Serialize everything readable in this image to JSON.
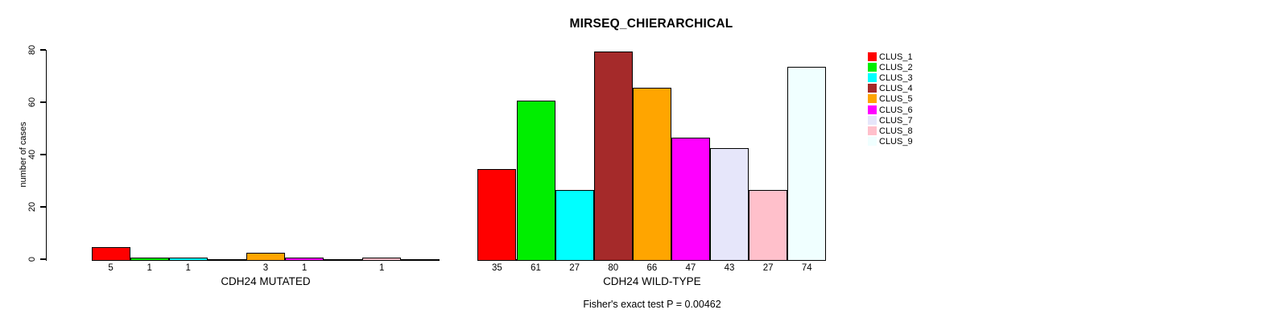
{
  "chart_data": {
    "type": "bar",
    "title": "MIRSEQ_CHIERARCHICAL",
    "ylabel": "number of cases",
    "ylim": [
      0,
      80
    ],
    "yticks": [
      0,
      20,
      40,
      60,
      80
    ],
    "grid": false,
    "legend_position": "right",
    "annotation": "Fisher's exact test P = 0.00462",
    "clusters": [
      {
        "label": "CLUS_1",
        "color": "#FF0000"
      },
      {
        "label": "CLUS_2",
        "color": "#00EE00"
      },
      {
        "label": "CLUS_3",
        "color": "#00FFFF"
      },
      {
        "label": "CLUS_4",
        "color": "#A52A2A"
      },
      {
        "label": "CLUS_5",
        "color": "#FFA500"
      },
      {
        "label": "CLUS_6",
        "color": "#FF00FF"
      },
      {
        "label": "CLUS_7",
        "color": "#E6E6FA"
      },
      {
        "label": "CLUS_8",
        "color": "#FFC0CB"
      },
      {
        "label": "CLUS_9",
        "color": "#F0FFFF"
      }
    ],
    "groups": [
      {
        "xlabel": "CDH24 MUTATED",
        "categories": [
          "CLUS_1",
          "CLUS_2",
          "CLUS_3",
          "CLUS_4",
          "CLUS_5",
          "CLUS_6",
          "CLUS_7",
          "CLUS_8",
          "CLUS_9"
        ],
        "values": [
          5,
          1,
          1,
          0,
          3,
          1,
          0,
          1,
          0
        ],
        "shown_bar_labels": [
          "5",
          "1",
          "1",
          "3",
          "1",
          "1"
        ]
      },
      {
        "xlabel": "CDH24 WILD-TYPE",
        "categories": [
          "CLUS_1",
          "CLUS_2",
          "CLUS_3",
          "CLUS_4",
          "CLUS_5",
          "CLUS_6",
          "CLUS_7",
          "CLUS_8",
          "CLUS_9"
        ],
        "values": [
          35,
          61,
          27,
          80,
          66,
          47,
          43,
          27,
          74
        ],
        "shown_bar_labels": [
          "35",
          "61",
          "27",
          "80",
          "66",
          "47",
          "43",
          "27",
          "74"
        ]
      }
    ]
  }
}
